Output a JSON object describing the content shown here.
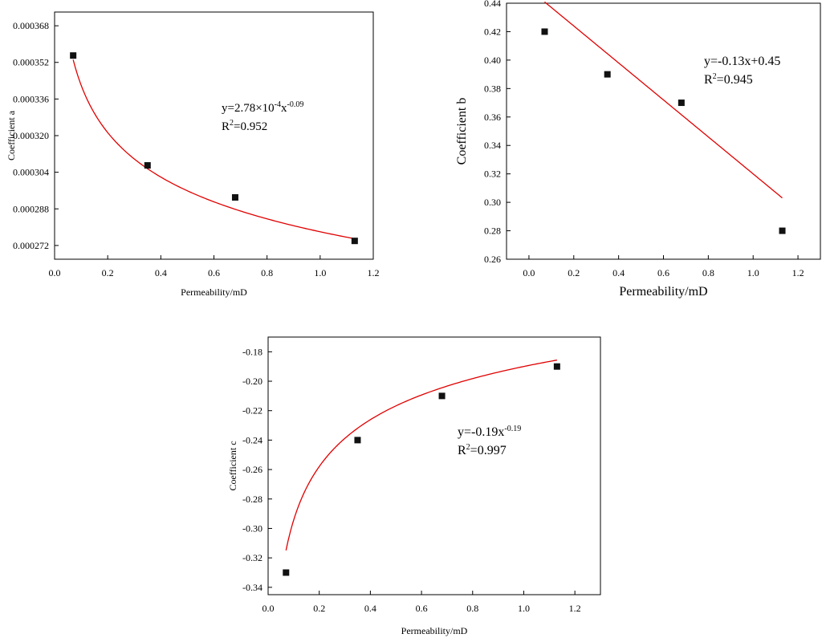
{
  "chart_data": [
    {
      "type": "scatter",
      "xlabel": "Permeability/mD",
      "ylabel": "Coefficient a",
      "xlim": [
        0.0,
        1.2
      ],
      "ylim": [
        0.000266,
        0.000374
      ],
      "x_ticks": [
        "0.0",
        "0.2",
        "0.4",
        "0.6",
        "0.8",
        "1.0",
        "1.2"
      ],
      "y_ticks": [
        "0.000272",
        "0.000288",
        "0.000304",
        "0.000320",
        "0.000336",
        "0.000352",
        "0.000368"
      ],
      "grid": false,
      "points": [
        {
          "x": 0.07,
          "y": 0.000355
        },
        {
          "x": 0.35,
          "y": 0.000307
        },
        {
          "x": 0.68,
          "y": 0.000293
        },
        {
          "x": 1.13,
          "y": 0.000274
        }
      ],
      "fit": {
        "kind": "power",
        "a": 0.000278,
        "b": -0.09,
        "x_from": 0.07,
        "x_to": 1.13
      },
      "equation": {
        "main": "y=2.78×10",
        "sup1": "-4",
        "mid": "x",
        "sup2": "-0.09"
      },
      "r2": {
        "base": "R",
        "sup": "2",
        "value": "=0.952"
      }
    },
    {
      "type": "scatter",
      "xlabel": "Permeability/mD",
      "ylabel": "Coefficient b",
      "xlim": [
        -0.1,
        1.3
      ],
      "ylim": [
        0.26,
        0.44
      ],
      "x_ticks": [
        "0.0",
        "0.2",
        "0.4",
        "0.6",
        "0.8",
        "1.0",
        "1.2"
      ],
      "y_ticks": [
        "0.26",
        "0.28",
        "0.30",
        "0.32",
        "0.34",
        "0.36",
        "0.38",
        "0.40",
        "0.42",
        "0.44"
      ],
      "grid": false,
      "points": [
        {
          "x": 0.07,
          "y": 0.42
        },
        {
          "x": 0.35,
          "y": 0.39
        },
        {
          "x": 0.68,
          "y": 0.37
        },
        {
          "x": 1.13,
          "y": 0.28
        }
      ],
      "fit": {
        "kind": "linear",
        "slope": -0.13,
        "intercept": 0.45,
        "x_from": 0.07,
        "x_to": 1.13
      },
      "equation": {
        "main": "y=-0.13x+0.45"
      },
      "r2": {
        "base": "R",
        "sup": "2",
        "value": "=0.945"
      }
    },
    {
      "type": "scatter",
      "xlabel": "Permeability/mD",
      "ylabel": "Coefficient c",
      "xlim": [
        0.0,
        1.3
      ],
      "ylim": [
        -0.345,
        -0.17
      ],
      "x_ticks": [
        "0.0",
        "0.2",
        "0.4",
        "0.6",
        "0.8",
        "1.0",
        "1.2"
      ],
      "y_ticks": [
        "-0.34",
        "-0.32",
        "-0.30",
        "-0.28",
        "-0.26",
        "-0.24",
        "-0.22",
        "-0.20",
        "-0.18"
      ],
      "grid": false,
      "points": [
        {
          "x": 0.07,
          "y": -0.33
        },
        {
          "x": 0.35,
          "y": -0.24
        },
        {
          "x": 0.68,
          "y": -0.21
        },
        {
          "x": 1.13,
          "y": -0.19
        }
      ],
      "fit": {
        "kind": "power",
        "a": -0.19,
        "b": -0.19,
        "x_from": 0.07,
        "x_to": 1.13
      },
      "equation": {
        "main": "y=-0.19x",
        "sup2": "-0.19"
      },
      "r2": {
        "base": "R",
        "sup": "2",
        "value": "=0.997"
      }
    }
  ]
}
